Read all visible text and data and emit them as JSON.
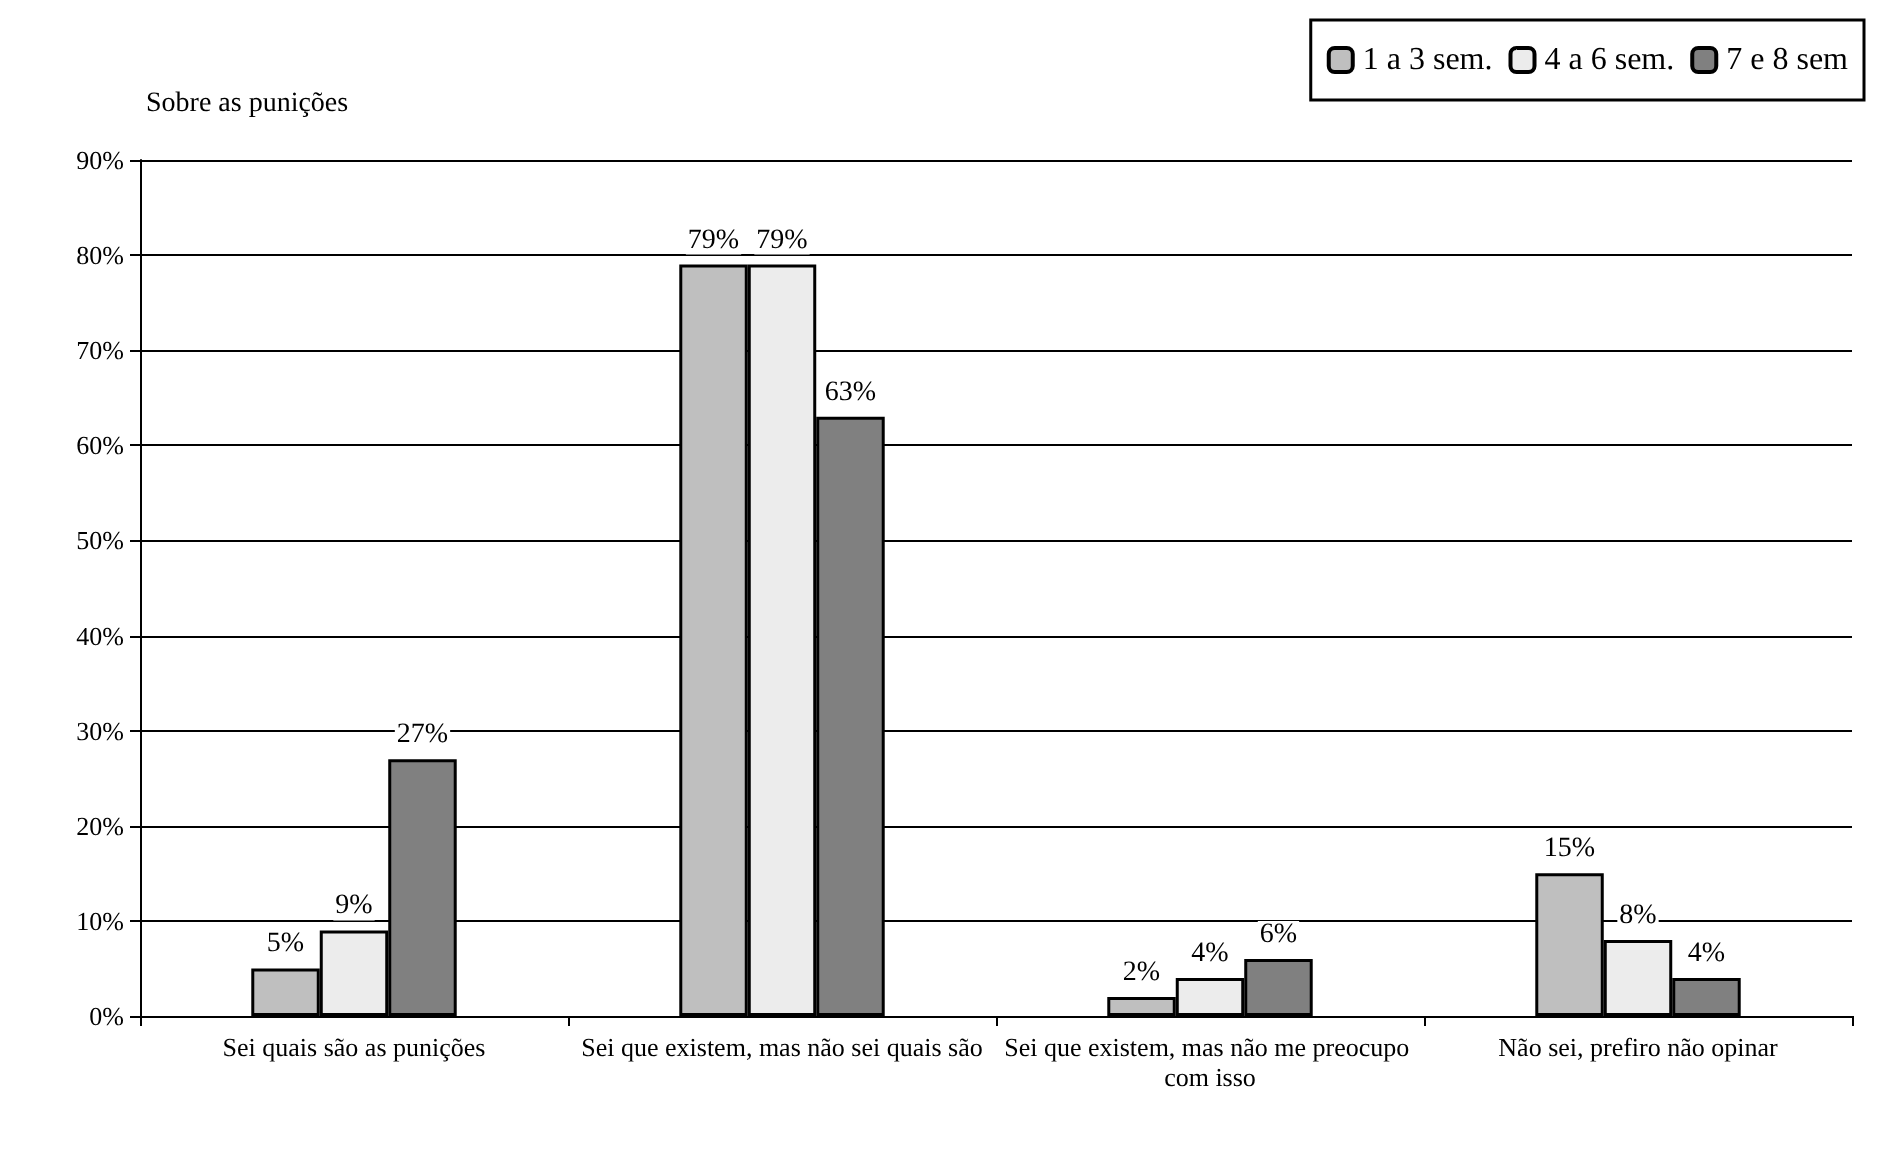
{
  "chart_data": {
    "type": "bar",
    "title": "Sobre as punições",
    "categories": [
      "Sei quais são as punições",
      "Sei que existem, mas não sei quais são",
      "Sei que existem, mas não me preocupo com isso",
      "Não sei, prefiro não opinar"
    ],
    "series": [
      {
        "name": "1 a 3 sem.",
        "color": "#bfbfbf",
        "values": [
          5,
          79,
          2,
          15
        ],
        "value_labels": [
          "5%",
          "79%",
          "2%",
          "15%"
        ]
      },
      {
        "name": "4 a 6 sem.",
        "color": "#ececec",
        "values": [
          9,
          79,
          4,
          8
        ],
        "value_labels": [
          "9%",
          "79%",
          "4%",
          "8%"
        ]
      },
      {
        "name": "7 e 8 sem",
        "color": "#808080",
        "values": [
          27,
          63,
          6,
          4
        ],
        "value_labels": [
          "27%",
          "63%",
          "6%",
          "4%"
        ]
      }
    ],
    "ylim": [
      0,
      90
    ],
    "yticks": [
      {
        "value": 0,
        "label": "0%"
      },
      {
        "value": 10,
        "label": "10%"
      },
      {
        "value": 20,
        "label": "20%"
      },
      {
        "value": 30,
        "label": "30%"
      },
      {
        "value": 40,
        "label": "40%"
      },
      {
        "value": 50,
        "label": "50%"
      },
      {
        "value": 60,
        "label": "60%"
      },
      {
        "value": 70,
        "label": "70%"
      },
      {
        "value": 80,
        "label": "80%"
      },
      {
        "value": 90,
        "label": "90%"
      }
    ],
    "grid": "y",
    "legend": "top right"
  }
}
